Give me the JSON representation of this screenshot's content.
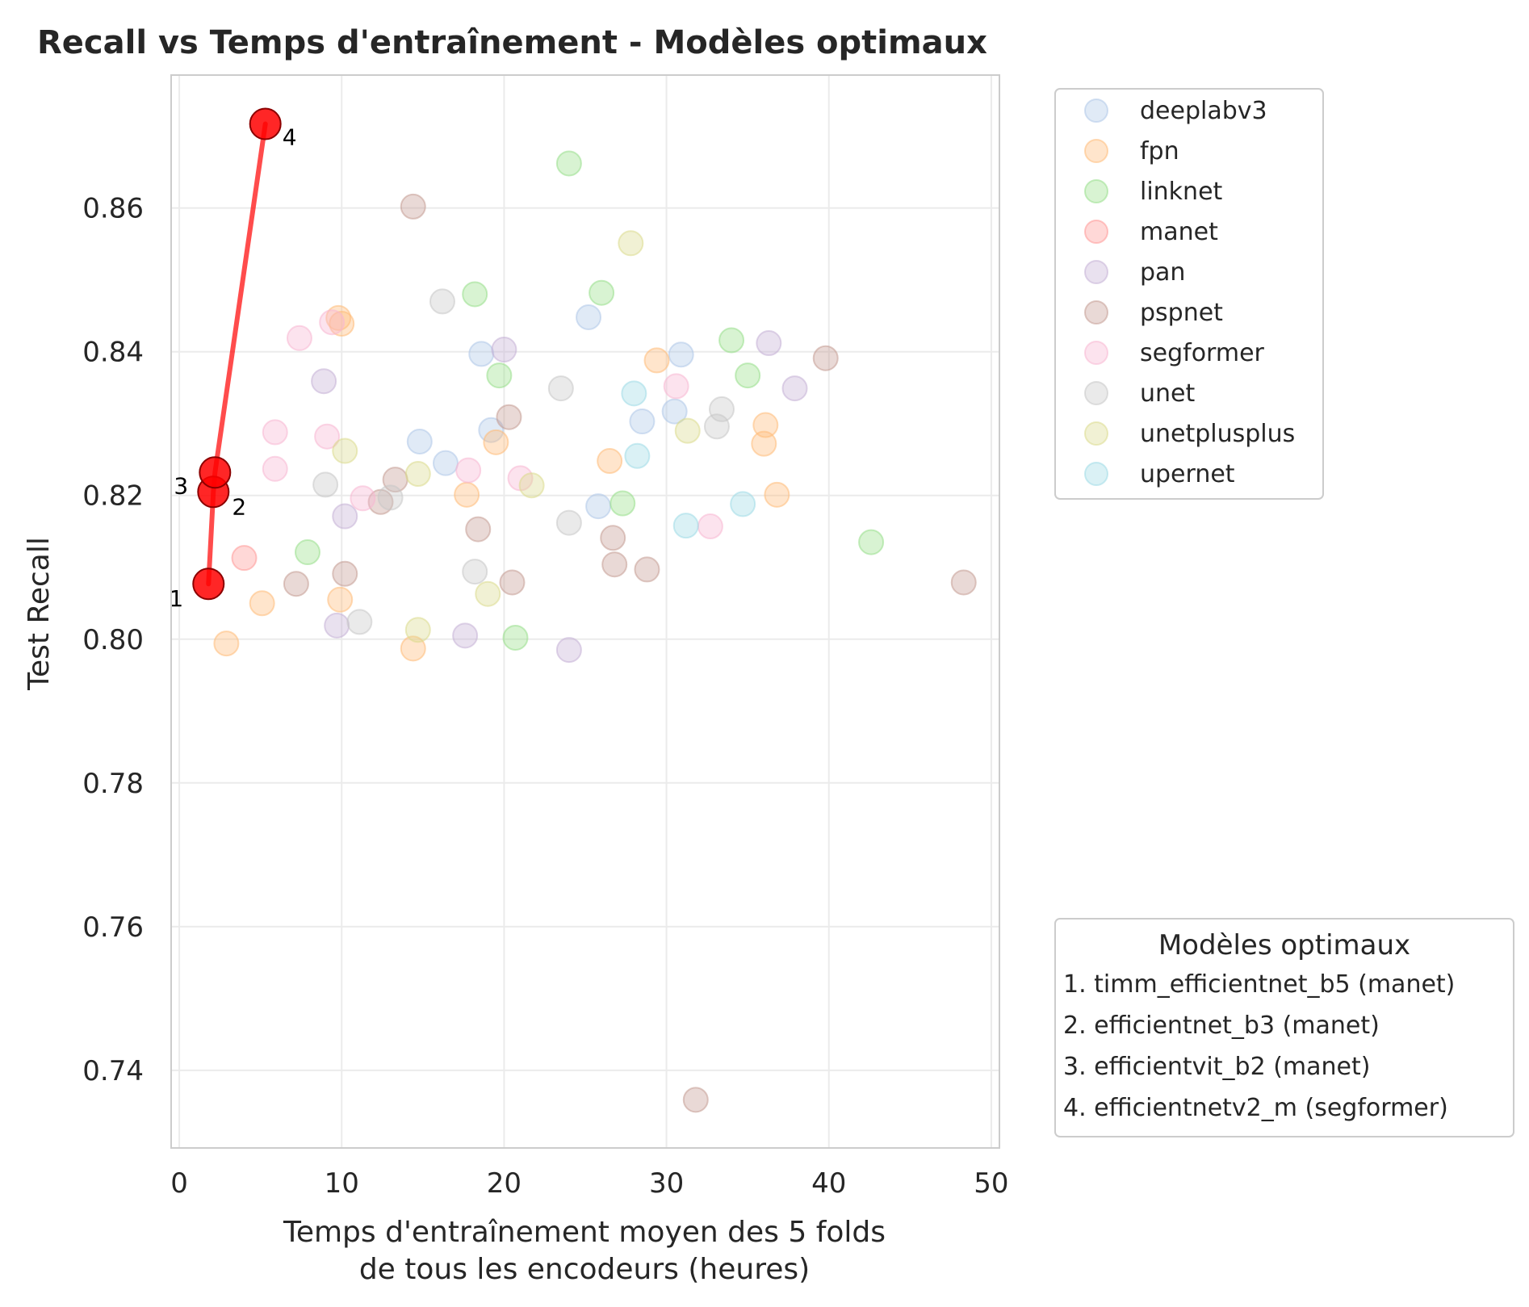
{
  "chart_data": {
    "type": "scatter",
    "title": "Recall vs Temps d'entraînement - Modèles optimaux",
    "xlabel_lines": [
      "Temps d'entraînement moyen des 5 folds",
      "de tous les encodeurs (heures)"
    ],
    "ylabel": "Test Recall",
    "xlim": [
      -0.5,
      50.5
    ],
    "ylim": [
      0.7292,
      0.8785
    ],
    "xticks": [
      0,
      10,
      20,
      30,
      40,
      50
    ],
    "xtick_labels": [
      "0",
      "10",
      "20",
      "30",
      "40",
      "50"
    ],
    "yticks": [
      0.74,
      0.76,
      0.78,
      0.8,
      0.82,
      0.84,
      0.86
    ],
    "ytick_labels": [
      "0.74",
      "0.76",
      "0.78",
      "0.80",
      "0.82",
      "0.84",
      "0.86"
    ],
    "grid": true,
    "series": [
      {
        "name": "deeplabv3",
        "color": "#aec7e8",
        "points": [
          [
            14.8,
            0.8275
          ],
          [
            16.4,
            0.8245
          ],
          [
            18.6,
            0.8397
          ],
          [
            19.2,
            0.8291
          ],
          [
            25.2,
            0.8448
          ],
          [
            25.8,
            0.8185
          ],
          [
            28.5,
            0.8303
          ],
          [
            30.5,
            0.8317
          ],
          [
            30.9,
            0.8396
          ]
        ]
      },
      {
        "name": "fpn",
        "color": "#ffbb78",
        "points": [
          [
            2.9,
            0.7994
          ],
          [
            5.1,
            0.805
          ],
          [
            9.8,
            0.8447
          ],
          [
            9.9,
            0.8055
          ],
          [
            10.0,
            0.8439
          ],
          [
            14.4,
            0.7987
          ],
          [
            17.7,
            0.8201
          ],
          [
            19.5,
            0.8274
          ],
          [
            26.5,
            0.8248
          ],
          [
            29.4,
            0.8388
          ],
          [
            36.0,
            0.8272
          ],
          [
            36.1,
            0.8298
          ],
          [
            36.8,
            0.8201
          ]
        ]
      },
      {
        "name": "linknet",
        "color": "#98df8a",
        "points": [
          [
            7.9,
            0.8121
          ],
          [
            18.2,
            0.848
          ],
          [
            19.7,
            0.8367
          ],
          [
            20.7,
            0.8002
          ],
          [
            24.0,
            0.8662
          ],
          [
            26.0,
            0.8482
          ],
          [
            27.3,
            0.8189
          ],
          [
            34.0,
            0.8416
          ],
          [
            35.0,
            0.8367
          ],
          [
            42.6,
            0.8135
          ]
        ]
      },
      {
        "name": "manet",
        "color": "#ff9896",
        "points": [
          [
            4.0,
            0.8113
          ]
        ]
      },
      {
        "name": "pan",
        "color": "#c5b0d5",
        "points": [
          [
            8.9,
            0.8359
          ],
          [
            9.7,
            0.8019
          ],
          [
            10.2,
            0.8171
          ],
          [
            17.6,
            0.8005
          ],
          [
            20.0,
            0.8403
          ],
          [
            24.0,
            0.7985
          ],
          [
            36.3,
            0.8412
          ],
          [
            37.9,
            0.8349
          ]
        ]
      },
      {
        "name": "pspnet",
        "color": "#c49c94",
        "points": [
          [
            7.2,
            0.8077
          ],
          [
            10.2,
            0.8091
          ],
          [
            12.4,
            0.8191
          ],
          [
            13.3,
            0.8222
          ],
          [
            14.4,
            0.8602
          ],
          [
            18.4,
            0.8153
          ],
          [
            20.3,
            0.8309
          ],
          [
            20.5,
            0.8079
          ],
          [
            26.7,
            0.8141
          ],
          [
            26.8,
            0.8104
          ],
          [
            28.8,
            0.8097
          ],
          [
            31.8,
            0.7359
          ],
          [
            39.8,
            0.8391
          ],
          [
            48.3,
            0.8079
          ]
        ]
      },
      {
        "name": "segformer",
        "color": "#f7b6d2",
        "points": [
          [
            5.9,
            0.8288
          ],
          [
            5.9,
            0.8237
          ],
          [
            7.4,
            0.8419
          ],
          [
            9.1,
            0.8282
          ],
          [
            9.4,
            0.8441
          ],
          [
            11.3,
            0.8196
          ],
          [
            17.8,
            0.8235
          ],
          [
            21.0,
            0.8224
          ],
          [
            30.6,
            0.8352
          ],
          [
            32.7,
            0.8157
          ]
        ]
      },
      {
        "name": "unet",
        "color": "#c7c7c7",
        "points": [
          [
            9.0,
            0.8215
          ],
          [
            11.1,
            0.8024
          ],
          [
            13.0,
            0.8197
          ],
          [
            16.2,
            0.847
          ],
          [
            18.2,
            0.8094
          ],
          [
            23.5,
            0.8349
          ],
          [
            24.0,
            0.8162
          ],
          [
            33.1,
            0.8296
          ],
          [
            33.4,
            0.832
          ]
        ]
      },
      {
        "name": "unetplusplus",
        "color": "#dbdb8d",
        "points": [
          [
            10.2,
            0.8262
          ],
          [
            14.7,
            0.823
          ],
          [
            14.7,
            0.8013
          ],
          [
            19.0,
            0.8063
          ],
          [
            21.7,
            0.8214
          ],
          [
            27.8,
            0.8551
          ],
          [
            31.3,
            0.829
          ]
        ]
      },
      {
        "name": "upernet",
        "color": "#9edae5",
        "points": [
          [
            28.0,
            0.8342
          ],
          [
            28.2,
            0.8255
          ],
          [
            31.2,
            0.8158
          ],
          [
            34.7,
            0.8188
          ]
        ]
      }
    ],
    "pareto": {
      "color": "#ff0000",
      "points": [
        {
          "x": 1.8,
          "y": 0.8077,
          "label": "1"
        },
        {
          "x": 2.1,
          "y": 0.8205,
          "label": "2"
        },
        {
          "x": 2.2,
          "y": 0.8232,
          "label": "3"
        },
        {
          "x": 5.3,
          "y": 0.8717,
          "label": "4"
        }
      ]
    },
    "legend": {
      "position": "right-top"
    },
    "optimal_legend": {
      "title": "Modèles optimaux",
      "entries": [
        "1. timm_efficientnet_b5 (manet)",
        "2. efficientnet_b3 (manet)",
        "3. efficientvit_b2 (manet)",
        "4. efficientnetv2_m (segformer)"
      ]
    }
  }
}
